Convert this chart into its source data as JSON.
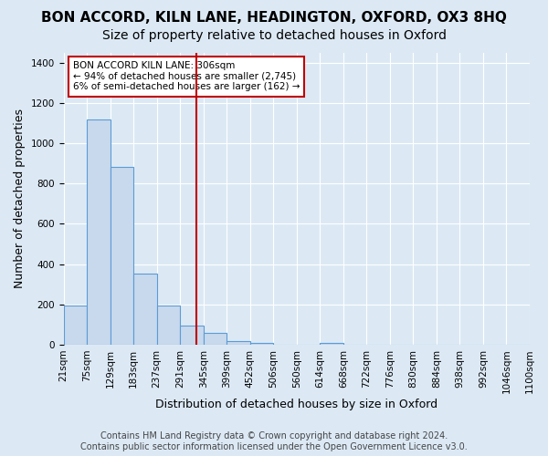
{
  "title": "BON ACCORD, KILN LANE, HEADINGTON, OXFORD, OX3 8HQ",
  "subtitle": "Size of property relative to detached houses in Oxford",
  "xlabel": "Distribution of detached houses by size in Oxford",
  "ylabel": "Number of detached properties",
  "footnote1": "Contains HM Land Registry data © Crown copyright and database right 2024.",
  "footnote2": "Contains public sector information licensed under the Open Government Licence v3.0.",
  "bin_edges": [
    "21sqm",
    "75sqm",
    "129sqm",
    "183sqm",
    "237sqm",
    "291sqm",
    "345sqm",
    "399sqm",
    "452sqm",
    "506sqm",
    "560sqm",
    "614sqm",
    "668sqm",
    "722sqm",
    "776sqm",
    "830sqm",
    "884sqm",
    "938sqm",
    "992sqm",
    "1046sqm",
    "1100sqm"
  ],
  "bar_values": [
    193,
    1118,
    880,
    352,
    195,
    95,
    57,
    20,
    10,
    0,
    0,
    10,
    0,
    0,
    0,
    0,
    0,
    0,
    0,
    0
  ],
  "bar_color": "#c8d9ed",
  "bar_edge_color": "#5b9bd5",
  "vline_x": 5.18,
  "vline_color": "#c00000",
  "annotation_line1": "BON ACCORD KILN LANE: 306sqm",
  "annotation_line2": "← 94% of detached houses are smaller (2,745)",
  "annotation_line3": "6% of semi-detached houses are larger (162) →",
  "annotation_box_color": "#ffffff",
  "annotation_box_edge": "#c00000",
  "ylim": [
    0,
    1450
  ],
  "yticks": [
    0,
    200,
    400,
    600,
    800,
    1000,
    1200,
    1400
  ],
  "background_color": "#dce9f5",
  "plot_bg_color": "#dce9f5",
  "grid_color": "#ffffff",
  "title_fontsize": 11,
  "subtitle_fontsize": 10,
  "axis_label_fontsize": 9,
  "tick_fontsize": 7.5,
  "footnote_fontsize": 7
}
